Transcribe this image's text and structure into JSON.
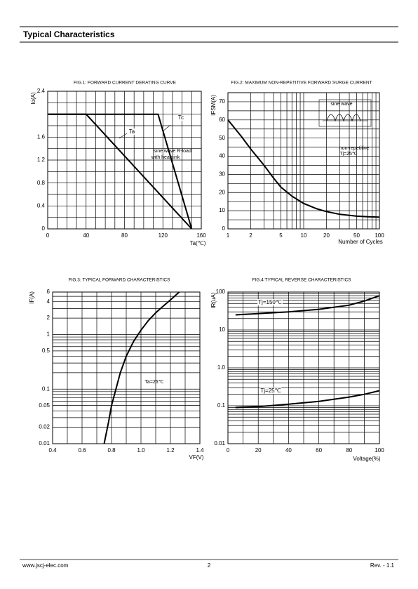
{
  "header": {
    "title": "Typical Characteristics"
  },
  "chart_data": [
    {
      "type": "line",
      "title": "FIG.1: FORWARD CURRENT  DERATING CURVE",
      "y_label": "Io(A)",
      "x_label": "Ta(℃)",
      "xlim": [
        0,
        160
      ],
      "xticks": [
        0,
        40,
        80,
        120,
        160
      ],
      "ylim": [
        0,
        2.4
      ],
      "yticks": [
        0,
        0.4,
        0.8,
        1.2,
        1.6,
        2.4
      ],
      "xgrid": [
        0,
        10,
        20,
        30,
        40,
        50,
        60,
        70,
        80,
        90,
        100,
        110,
        120,
        130,
        140,
        150,
        160
      ],
      "ygrid": [
        0,
        0.2,
        0.4,
        0.6,
        0.8,
        1,
        1.2,
        1.4,
        1.6,
        1.8,
        2,
        2.2,
        2.4
      ],
      "series": [
        {
          "name": "Ta",
          "color": "#000000",
          "x": [
            0,
            40,
            150
          ],
          "values": [
            2,
            2,
            0
          ]
        },
        {
          "name": "Tc",
          "color": "#000000",
          "x": [
            0,
            115,
            150
          ],
          "values": [
            2,
            2,
            0
          ]
        }
      ],
      "annotations": [
        "sine wave R-load",
        "with heatsink"
      ]
    },
    {
      "type": "line",
      "title": "FIG.2: MAXIMUM NON-REPETITIVE FORWARD SURGE CURRENT",
      "y_label": "IFSM(A)",
      "x_label": "Number of Cycles",
      "xscale": "log",
      "xlim": [
        1,
        100
      ],
      "xticks": [
        1,
        2,
        5,
        10,
        20,
        50,
        100
      ],
      "ylim": [
        0,
        75
      ],
      "yticks": [
        0,
        10,
        20,
        30,
        40,
        50,
        60,
        70
      ],
      "xgrid": [
        1,
        2,
        3,
        4,
        5,
        6,
        7,
        8,
        9,
        10,
        20,
        30,
        40,
        50,
        60,
        70,
        80,
        90,
        100
      ],
      "ygrid": [
        0,
        5,
        10,
        15,
        20,
        25,
        30,
        35,
        40,
        45,
        50,
        55,
        60,
        65,
        70,
        75
      ],
      "series": [
        {
          "color": "#000000",
          "x": [
            1,
            1.5,
            2,
            3,
            4,
            5,
            7,
            10,
            15,
            20,
            30,
            50,
            70,
            100
          ],
          "values": [
            60,
            51,
            44,
            35,
            28,
            23,
            18,
            14,
            11,
            9.5,
            8,
            7,
            6.7,
            6.5
          ]
        }
      ],
      "annotations": [
        "sine wave",
        "non-repetitive",
        "Tj=25℃"
      ]
    },
    {
      "type": "line",
      "title": "FIG.3: TYPICAL FORWARD CHARACTERISTICS",
      "y_label": "IF(A)",
      "x_label": "VF(V)",
      "yscale": "log",
      "xlim": [
        0.4,
        1.4
      ],
      "xticks": [
        0.4,
        0.6,
        0.8,
        {
          "value": 1,
          "label": "1.0"
        },
        1.2,
        1.4
      ],
      "ylim": [
        0.01,
        6
      ],
      "yticks": [
        0.01,
        0.02,
        0.05,
        0.1,
        0.5,
        1,
        2,
        4,
        6
      ],
      "xgrid": [
        0.4,
        0.5,
        0.6,
        0.7,
        0.8,
        0.9,
        1,
        1.1,
        1.2,
        1.3,
        1.4
      ],
      "ygrid": [
        0.01,
        0.02,
        0.03,
        0.04,
        0.05,
        0.06,
        0.07,
        0.08,
        0.09,
        0.1,
        0.2,
        0.3,
        0.4,
        0.5,
        0.6,
        0.7,
        0.8,
        0.9,
        1,
        2,
        3,
        4,
        5,
        6
      ],
      "series": [
        {
          "color": "#000000",
          "x": [
            0.75,
            0.78,
            0.8,
            0.83,
            0.86,
            0.9,
            0.95,
            1.0,
            1.05,
            1.1,
            1.15,
            1.2,
            1.26
          ],
          "values": [
            0.01,
            0.025,
            0.05,
            0.1,
            0.2,
            0.4,
            0.75,
            1.2,
            1.8,
            2.5,
            3.3,
            4.3,
            6
          ]
        }
      ],
      "annotations": [
        "Ta=25℃"
      ]
    },
    {
      "type": "line",
      "title": "FIG.4:TYPICAL REVERSE CHARACTERISTICS",
      "y_label": "IR(uA)",
      "x_label": "Voltage(%)",
      "yscale": "log",
      "xlim": [
        0,
        100
      ],
      "xticks": [
        0,
        20,
        40,
        60,
        80,
        100
      ],
      "ylim": [
        0.01,
        100
      ],
      "yticks": [
        0.01,
        0.1,
        {
          "value": 1,
          "label": "1.0"
        },
        10,
        100
      ],
      "xgrid": [
        0,
        10,
        20,
        30,
        40,
        50,
        60,
        70,
        80,
        90,
        100
      ],
      "ygrid": [
        0.01,
        0.02,
        0.03,
        0.04,
        0.05,
        0.06,
        0.07,
        0.08,
        0.09,
        0.1,
        0.2,
        0.3,
        0.4,
        0.5,
        0.6,
        0.7,
        0.8,
        0.9,
        1,
        2,
        3,
        4,
        5,
        6,
        7,
        8,
        9,
        10,
        20,
        30,
        40,
        50,
        60,
        70,
        80,
        90,
        100
      ],
      "series": [
        {
          "name": "Tj=150℃",
          "color": "#000000",
          "x": [
            5,
            20,
            40,
            60,
            80,
            90,
            100
          ],
          "values": [
            25,
            27,
            30,
            35,
            45,
            58,
            80
          ]
        },
        {
          "name": "Tj=25℃",
          "color": "#000000",
          "x": [
            5,
            20,
            40,
            60,
            80,
            90,
            100
          ],
          "values": [
            0.09,
            0.095,
            0.11,
            0.13,
            0.17,
            0.2,
            0.25
          ]
        }
      ]
    }
  ],
  "footer": {
    "url": "www.jscj-elec.com",
    "page": "2",
    "revision": "Rev. - 1.1"
  }
}
